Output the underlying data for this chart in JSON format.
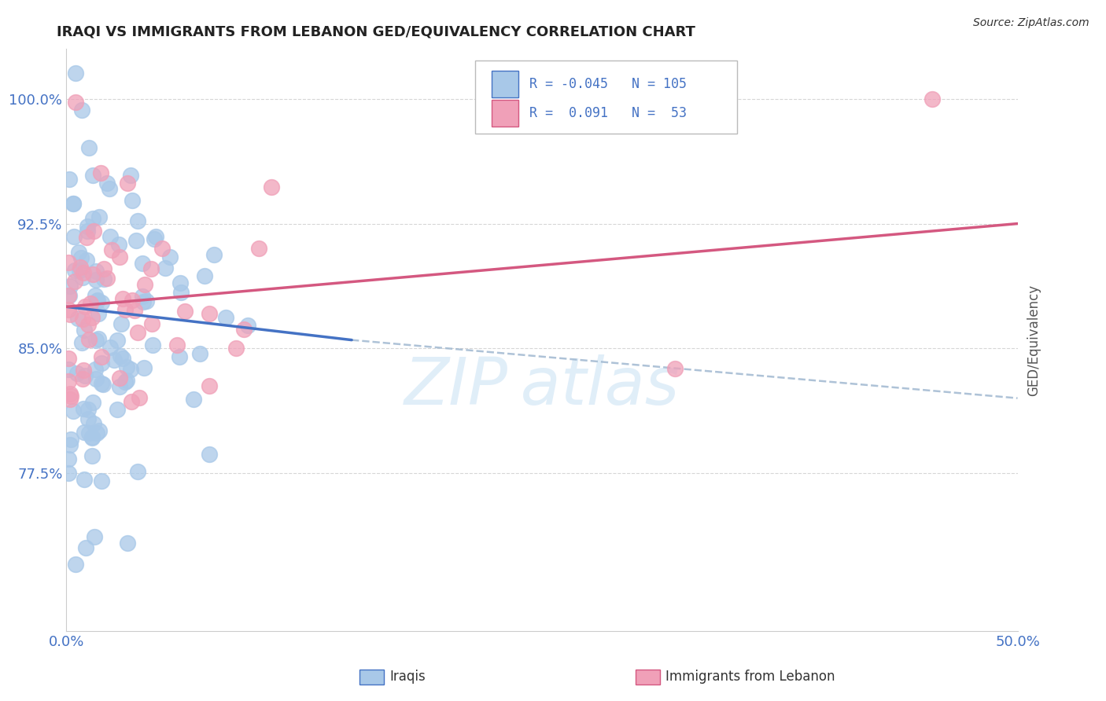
{
  "title": "IRAQI VS IMMIGRANTS FROM LEBANON GED/EQUIVALENCY CORRELATION CHART",
  "source": "Source: ZipAtlas.com",
  "ylabel": "GED/Equivalency",
  "ytick_labels": [
    "100.0%",
    "92.5%",
    "85.0%",
    "77.5%"
  ],
  "ytick_values": [
    1.0,
    0.925,
    0.85,
    0.775
  ],
  "xtick_labels": [
    "0.0%",
    "50.0%"
  ],
  "xtick_values": [
    0.0,
    0.5
  ],
  "legend_label1": "Iraqis",
  "legend_label2": "Immigrants from Lebanon",
  "R1": -0.045,
  "N1": 105,
  "R2": 0.091,
  "N2": 53,
  "blue_color": "#a8c8e8",
  "pink_color": "#f0a0b8",
  "blue_line_color": "#4472c4",
  "pink_line_color": "#d45880",
  "dash_color": "#a0b8d0",
  "xmin": 0.0,
  "xmax": 0.5,
  "ymin": 0.68,
  "ymax": 1.03,
  "blue_line": [
    0.0,
    0.875,
    0.15,
    0.855
  ],
  "pink_line": [
    0.0,
    0.875,
    0.5,
    0.925
  ],
  "dash_line": [
    0.15,
    0.855,
    0.5,
    0.82
  ]
}
